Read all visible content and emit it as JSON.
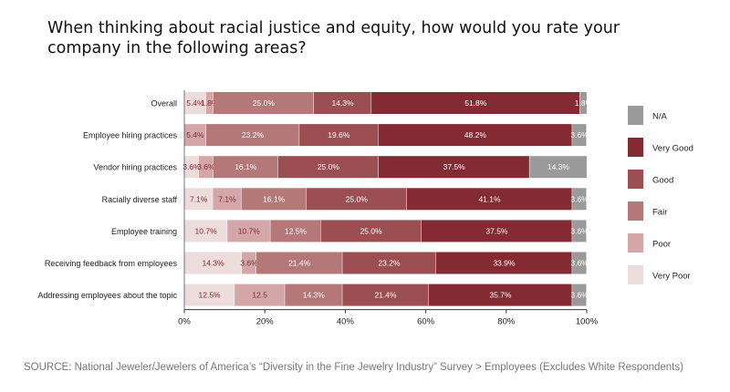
{
  "title": "When thinking about racial justice and equity, how would you rate your company in the following areas?",
  "source": "SOURCE: National Jeweler/Jewelers of America’s “Diversity in the Fine Jewelry Industry” Survey > Employees (Excludes White Respondents)",
  "chart_data": {
    "type": "bar",
    "orientation": "horizontal",
    "stacked": true,
    "percent_stacked": true,
    "categories": [
      "Overall",
      "Employee hiring practices",
      "Vendor hiring practices",
      "Racially diverse staff",
      "Employee training",
      "Receiving feedback from employees",
      "Addressing employees about the topic"
    ],
    "series": [
      {
        "name": "Very Poor",
        "color": "#eddcdc",
        "values": [
          5.4,
          0,
          3.6,
          7.1,
          10.7,
          14.3,
          12.5
        ],
        "labels": [
          "5.4%",
          "",
          "3.6%",
          "7.1%",
          "10.7%",
          "14.3%",
          "12.5%"
        ]
      },
      {
        "name": "Poor",
        "color": "#d3a7a7",
        "values": [
          1.8,
          5.4,
          3.6,
          7.1,
          10.7,
          3.6,
          12.5
        ],
        "labels": [
          "1.8%",
          "5.4%",
          "3.6%",
          "7.1%",
          "10.7%",
          "3.6%",
          "12.5"
        ]
      },
      {
        "name": "Fair",
        "color": "#b47878",
        "values": [
          25.0,
          23.2,
          16.1,
          16.1,
          12.5,
          21.4,
          14.3
        ],
        "labels": [
          "25.0%",
          "23.2%",
          "16.1%",
          "16.1%",
          "12.5%",
          "21.4%",
          "14.3%"
        ]
      },
      {
        "name": "Good",
        "color": "#9b4f52",
        "values": [
          14.3,
          19.6,
          25.0,
          25.0,
          25.0,
          23.2,
          21.4
        ],
        "labels": [
          "14.3%",
          "19.6%",
          "25.0%",
          "25.0%",
          "25.0%",
          "23.2%",
          "21.4%"
        ]
      },
      {
        "name": "Very Good",
        "color": "#832a33",
        "values": [
          51.8,
          48.2,
          37.5,
          41.1,
          37.5,
          33.9,
          35.7
        ],
        "labels": [
          "51.8%",
          "48.2%",
          "37.5%",
          "41.1%",
          "37.5%",
          "33.9%",
          "35.7%"
        ]
      },
      {
        "name": "N/A",
        "color": "#9a9a9a",
        "values": [
          1.8,
          3.6,
          14.3,
          3.6,
          3.6,
          3.6,
          3.6
        ],
        "labels": [
          "1.8%",
          "3.6%",
          "14.3%",
          "3.6%",
          "3.6%",
          "3.6%",
          "3.6%"
        ]
      }
    ],
    "xlim": [
      0,
      100
    ],
    "x_ticks": [
      "0%",
      "20%",
      "40%",
      "60%",
      "80%",
      "100%"
    ],
    "legend_order": [
      "N/A",
      "Very Good",
      "Good",
      "Fair",
      "Poor",
      "Very Poor"
    ],
    "legend_position": "right",
    "grid": false
  }
}
